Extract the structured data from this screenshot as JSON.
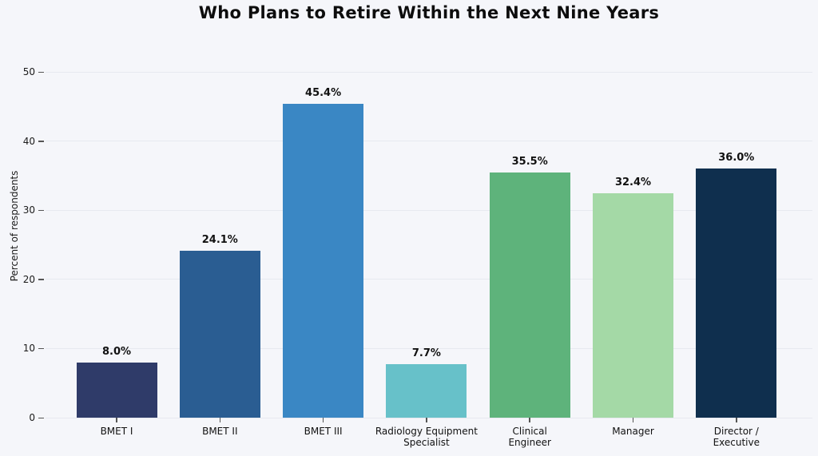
{
  "chart_data": {
    "type": "bar",
    "title": "Who Plans to Retire Within the Next Nine Years",
    "xlabel": "",
    "ylabel": "Percent of respondents",
    "categories": [
      "BMET I",
      "BMET II",
      "BMET III",
      "Radiology Equipment Specialist",
      "Clinical Engineer",
      "Manager",
      "Director / Executive"
    ],
    "category_label_lines": [
      [
        "BMET I"
      ],
      [
        "BMET II"
      ],
      [
        "BMET III"
      ],
      [
        "Radiology Equipment",
        "Specialist"
      ],
      [
        "Clinical",
        "Engineer"
      ],
      [
        "Manager"
      ],
      [
        "Director /",
        "Executive"
      ]
    ],
    "values": [
      8.0,
      24.1,
      45.4,
      7.7,
      35.5,
      32.4,
      36.0
    ],
    "value_labels": [
      "8.0%",
      "24.1%",
      "45.4%",
      "7.7%",
      "35.5%",
      "32.4%",
      "36.0%"
    ],
    "bar_colors": [
      "#2f3b69",
      "#2a5d92",
      "#3a87c4",
      "#67c1c9",
      "#5eb37b",
      "#a4d9a6",
      "#0f2f4e"
    ],
    "ylim": [
      0,
      50
    ],
    "yticks": [
      0,
      10,
      20,
      30,
      40,
      50
    ],
    "grid": "horizontal",
    "legend": "none",
    "colors": {
      "background": "#f5f6fa",
      "gridline": "#e7e9f0",
      "text": "#111111"
    }
  }
}
